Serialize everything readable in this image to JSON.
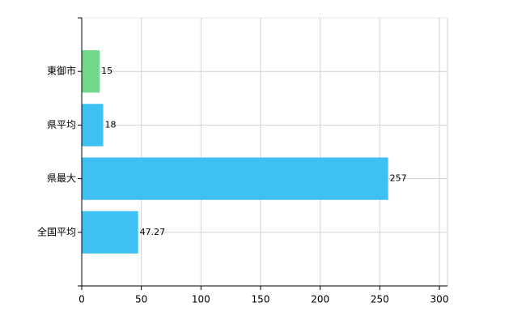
{
  "chart_data": {
    "type": "hbar",
    "categories": [
      "東御市",
      "県平均",
      "県最大",
      "全国平均"
    ],
    "values": [
      15,
      18,
      257,
      47.27
    ],
    "colors": [
      "#72d68c",
      "#3ec1f2",
      "#3ec1f2",
      "#3ec1f2"
    ],
    "xlim": [
      0,
      300
    ],
    "xticks": [
      0,
      50,
      100,
      150,
      200,
      250,
      300
    ],
    "grid": true
  }
}
